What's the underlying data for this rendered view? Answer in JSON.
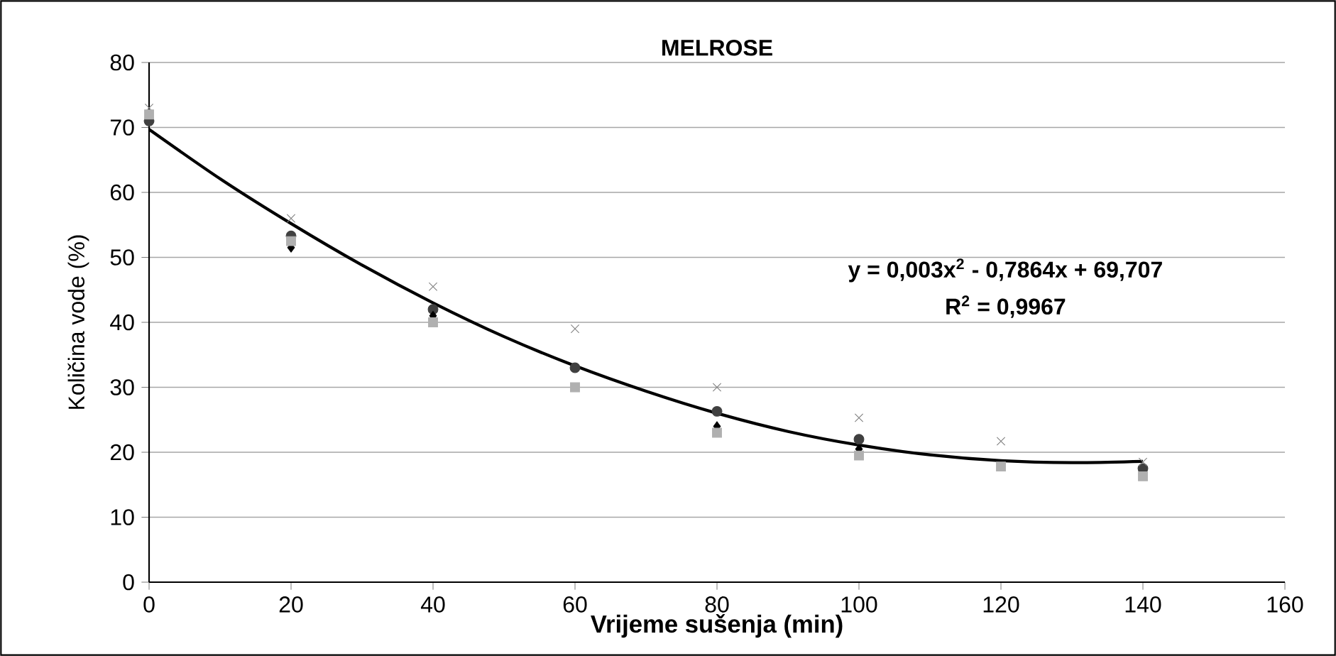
{
  "chart_data": {
    "type": "scatter",
    "title": "MELROSE",
    "xlabel": "Vrijeme sušenja (min)",
    "ylabel": "Količina vode (%)",
    "x": [
      0,
      20,
      40,
      60,
      80,
      100,
      120,
      140
    ],
    "series": [
      {
        "color": "#404040",
        "marker": "circle",
        "values": [
          71,
          53.3,
          42,
          33,
          26.3,
          22,
          null,
          17.5
        ]
      },
      {
        "color": "#000000",
        "marker": "diamond",
        "values": [
          null,
          51.5,
          41,
          null,
          24,
          20.5,
          null,
          null
        ]
      },
      {
        "color": "#808080",
        "marker": "cross",
        "values": [
          73,
          56,
          45.5,
          39,
          30,
          25.3,
          21.7,
          18.5
        ]
      },
      {
        "color": "#b0b0b0",
        "marker": "square",
        "values": [
          72,
          52.5,
          40,
          30,
          23,
          19.5,
          17.8,
          16.3
        ]
      },
      {
        "type": "line",
        "color": "#000000",
        "marker": "none",
        "x": [
          0,
          10,
          20,
          30,
          40,
          50,
          60,
          70,
          80,
          90,
          100,
          110,
          120,
          130,
          140
        ],
        "values": [
          69.7,
          62.1,
          55.2,
          48.8,
          43.0,
          37.8,
          33.3,
          29.4,
          26.0,
          23.2,
          21.1,
          19.6,
          18.7,
          18.4,
          18.6
        ]
      }
    ],
    "xlim": [
      0,
      160
    ],
    "xticks": [
      0,
      20,
      40,
      60,
      80,
      100,
      120,
      140,
      160
    ],
    "ylim": [
      0,
      80
    ],
    "yticks": [
      0,
      10,
      20,
      30,
      40,
      50,
      60,
      70,
      80
    ],
    "grid": "y",
    "annotations": [
      "y = 0,003x$^{2}$ - 0,7864x + 69,707",
      "R$^{2}$ = 0,9967"
    ]
  }
}
